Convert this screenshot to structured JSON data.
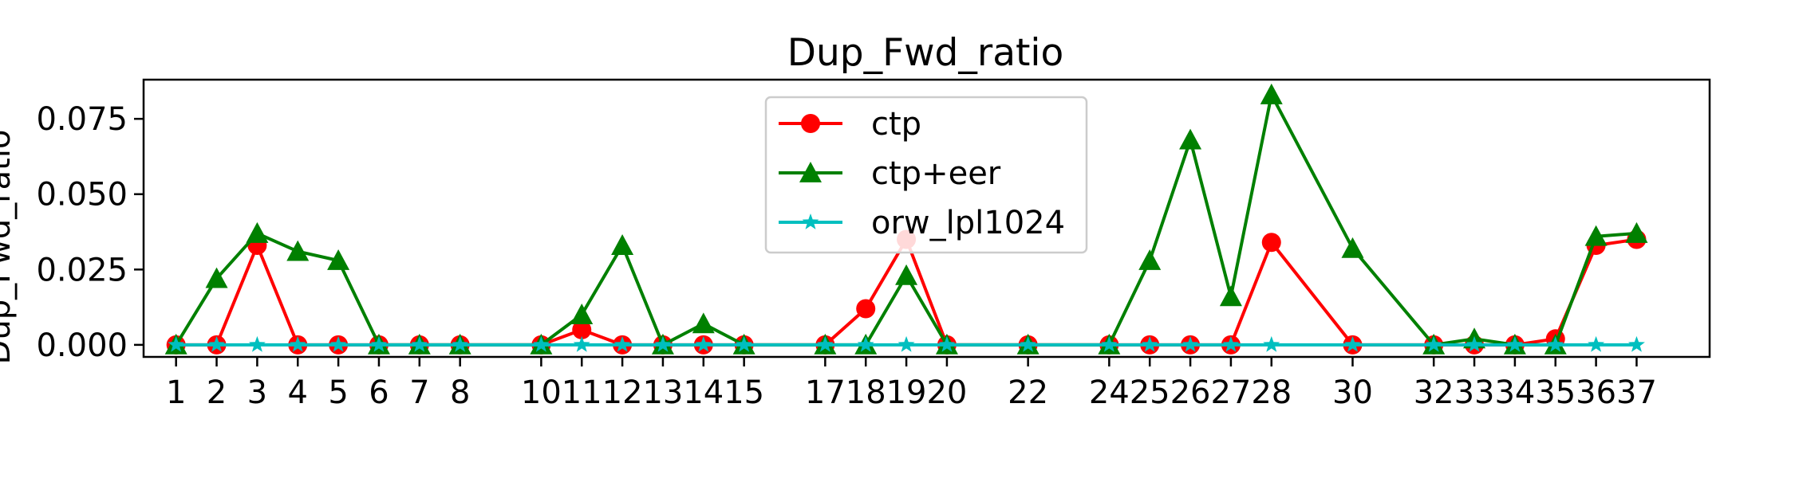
{
  "chart_data": {
    "type": "line",
    "title": "Dup_Fwd_ratio",
    "xlabel": "",
    "ylabel": "Dup_Fwd_ratio",
    "x": [
      1,
      2,
      3,
      4,
      5,
      6,
      7,
      8,
      10,
      11,
      12,
      13,
      14,
      15,
      17,
      18,
      19,
      20,
      22,
      24,
      25,
      26,
      27,
      28,
      30,
      32,
      33,
      34,
      35,
      36,
      37
    ],
    "xticks": [
      "1",
      "2",
      "3",
      "4",
      "5",
      "6",
      "7",
      "8",
      "10",
      "11",
      "12",
      "13",
      "14",
      "15",
      "17",
      "18",
      "19",
      "20",
      "22",
      "24",
      "25",
      "26",
      "27",
      "28",
      "30",
      "32",
      "33",
      "34",
      "35",
      "36",
      "37"
    ],
    "xlim": [
      0.2,
      38.8
    ],
    "ylim": [
      -0.004,
      0.088
    ],
    "yticks": [
      0.0,
      0.025,
      0.05,
      0.075
    ],
    "ytick_labels": [
      "0.000",
      "0.025",
      "0.050",
      "0.075"
    ],
    "grid": false,
    "legend_position": "top-center",
    "series": [
      {
        "name": "ctp",
        "color": "#ff0000",
        "marker": "circle",
        "values": [
          0,
          0,
          0.033,
          0,
          0,
          0,
          0,
          0,
          0,
          0.005,
          0,
          0,
          0,
          0,
          0,
          0.012,
          0.035,
          0,
          0,
          0,
          0,
          0,
          0,
          0.034,
          0,
          0,
          0,
          0,
          0.002,
          0.033,
          0.035
        ]
      },
      {
        "name": "ctp+eer",
        "color": "#008000",
        "marker": "triangle",
        "values": [
          0,
          0.022,
          0.037,
          0.031,
          0.028,
          0,
          0,
          0,
          0,
          0.01,
          0.033,
          0,
          0.007,
          0,
          0,
          0,
          0.023,
          0,
          0,
          0,
          0.028,
          0.068,
          0.016,
          0.083,
          0.032,
          0,
          0.002,
          0,
          0,
          0.036,
          0.037
        ]
      },
      {
        "name": "orw_lpl1024",
        "color": "#00bfbf",
        "marker": "star",
        "values": [
          0,
          0,
          0,
          0,
          0,
          0,
          0,
          0,
          0,
          0,
          0,
          0,
          0,
          0,
          0,
          0,
          0,
          0,
          0,
          0,
          0,
          0,
          0,
          0,
          0,
          0,
          0,
          0,
          0,
          0,
          0
        ]
      }
    ]
  }
}
